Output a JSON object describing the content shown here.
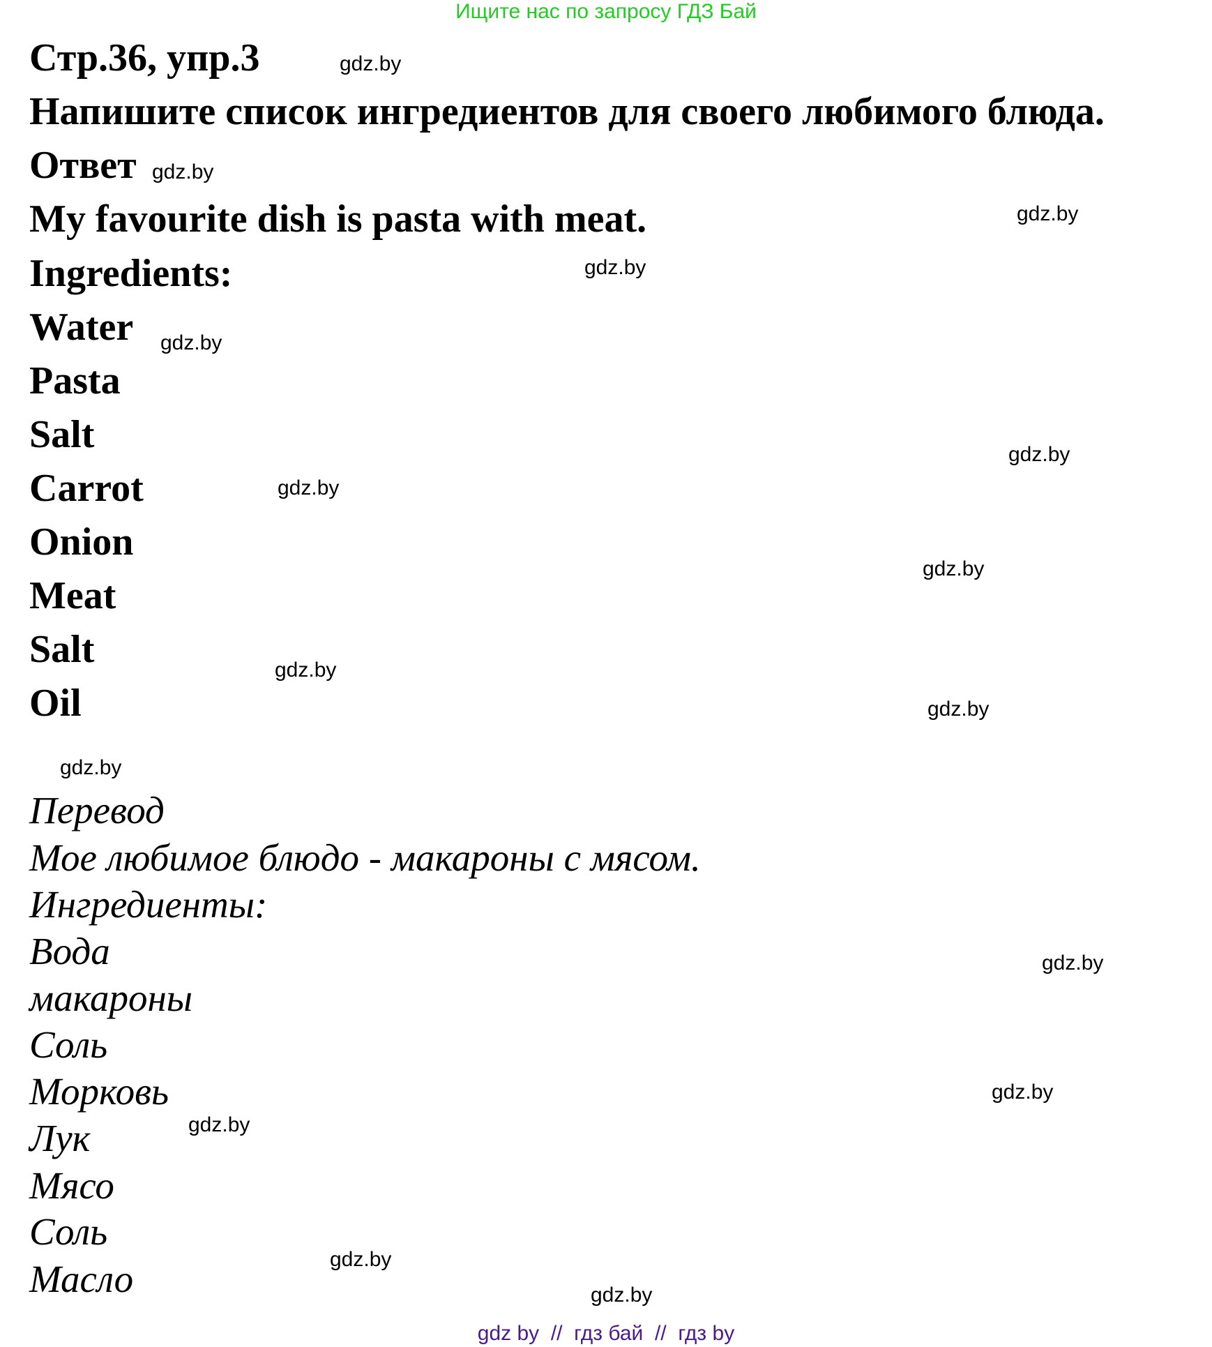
{
  "header_banner": "Ищите нас по запросу ГДЗ Бай",
  "exercise_ref": "Стр.36, упр.3",
  "task": "Напишите список ингредиентов для своего любимого блюда.",
  "answer_label": "Ответ",
  "answer": {
    "sentence": "My favourite dish is pasta with meat.",
    "ingredients_label": "Ingredients:",
    "ingredients": [
      "Water",
      "Pasta",
      "Salt",
      "Carrot",
      "Onion",
      "Meat",
      "Salt",
      "Oil"
    ]
  },
  "translation": {
    "label": "Перевод",
    "sentence": "Мое любимое блюдо - макароны с мясом.",
    "ingredients_label": "Ингредиенты:",
    "ingredients": [
      "Вода",
      "макароны",
      "Соль",
      "Морковь",
      "Лук",
      "Мясо",
      "Соль",
      "Масло"
    ]
  },
  "watermark": "gdz.by",
  "footer": "gdz by  //  гдз бай  //  гдз by",
  "colors": {
    "banner": "#22cc22",
    "footer": "#4a1a8a"
  }
}
